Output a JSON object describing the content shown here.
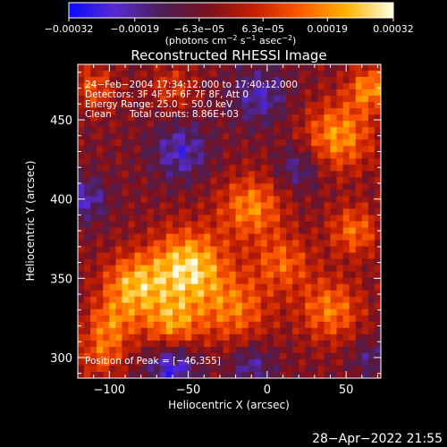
{
  "chart_data": {
    "type": "heatmap",
    "title": "Reconstructed RHESSI Image",
    "xlabel": "Heliocentric X (arcsec)",
    "ylabel": "Heliocentric Y (arcsec)",
    "xlim": [
      -120,
      72
    ],
    "ylim": [
      287,
      485
    ],
    "x_ticks": [
      -100,
      -50,
      0,
      50
    ],
    "x_tick_labels": [
      "−100",
      "−50",
      "0",
      "50"
    ],
    "y_ticks": [
      300,
      350,
      400,
      450
    ],
    "y_tick_labels": [
      "300",
      "350",
      "400",
      "450"
    ],
    "colorbar": {
      "range": [
        -0.00032,
        0.00032
      ],
      "ticks": [
        -0.00032,
        -0.00019,
        -6.3e-05,
        6.3e-05,
        0.00019,
        0.00032
      ],
      "tick_labels": [
        "−0.00032",
        "−0.00019",
        "−6.3e−05",
        "6.3e−05",
        "0.00019",
        "0.00032"
      ],
      "colors": [
        "#0a0aff",
        "#5a2ad0",
        "#4a1f55",
        "#7a1020",
        "#c52000",
        "#ff5a00",
        "#ffb400",
        "#ffffe6"
      ],
      "unit_label": {
        "prefix": "(photons cm",
        "exp1": "−2",
        "mid1": " s",
        "exp2": "−1",
        "mid2": " asec",
        "exp3": "−2",
        "suffix": ")"
      }
    },
    "peak": {
      "x": -46,
      "y": 355
    },
    "blobs": [
      {
        "x": -50,
        "y": 357,
        "r": 24,
        "v": 1.0
      },
      {
        "x": -85,
        "y": 345,
        "r": 20,
        "v": 0.8
      },
      {
        "x": -60,
        "y": 320,
        "r": 18,
        "v": 0.7
      },
      {
        "x": -20,
        "y": 330,
        "r": 22,
        "v": 0.6
      },
      {
        "x": -10,
        "y": 395,
        "r": 20,
        "v": 0.7
      },
      {
        "x": 10,
        "y": 360,
        "r": 18,
        "v": 0.55
      },
      {
        "x": 40,
        "y": 330,
        "r": 20,
        "v": 0.65
      },
      {
        "x": 55,
        "y": 380,
        "r": 16,
        "v": 0.6
      },
      {
        "x": 45,
        "y": 440,
        "r": 22,
        "v": 0.75
      },
      {
        "x": 65,
        "y": 470,
        "r": 14,
        "v": 0.7
      },
      {
        "x": -100,
        "y": 320,
        "r": 16,
        "v": 0.55
      },
      {
        "x": -110,
        "y": 470,
        "r": 14,
        "v": 0.5
      },
      {
        "x": -105,
        "y": 300,
        "r": 14,
        "v": 0.45
      },
      {
        "x": -60,
        "y": 470,
        "r": 14,
        "v": 0.4
      },
      {
        "x": -55,
        "y": 430,
        "r": 18,
        "v": -0.55
      },
      {
        "x": -5,
        "y": 465,
        "r": 18,
        "v": -0.5
      },
      {
        "x": -60,
        "y": 295,
        "r": 16,
        "v": -0.7
      },
      {
        "x": -10,
        "y": 295,
        "r": 14,
        "v": -0.45
      },
      {
        "x": 20,
        "y": 420,
        "r": 14,
        "v": -0.45
      },
      {
        "x": -115,
        "y": 400,
        "r": 14,
        "v": -0.5
      },
      {
        "x": 65,
        "y": 300,
        "r": 12,
        "v": -0.35
      }
    ]
  },
  "annotations": {
    "time_range": "24−Feb−2004 17:34:12.000 to 17:40:12.000",
    "detectors": "Detectors: 3F 4F 5F 6F 7F 8F, Att 0",
    "energy": "Energy Range: 25.0 − 50.0 keV",
    "method": "Clean",
    "counts": "Total counts: 8.86E+03",
    "peak_label": "Position of Peak = [−46,355]"
  },
  "footer": {
    "timestamp": "28−Apr−2022 21:55"
  }
}
